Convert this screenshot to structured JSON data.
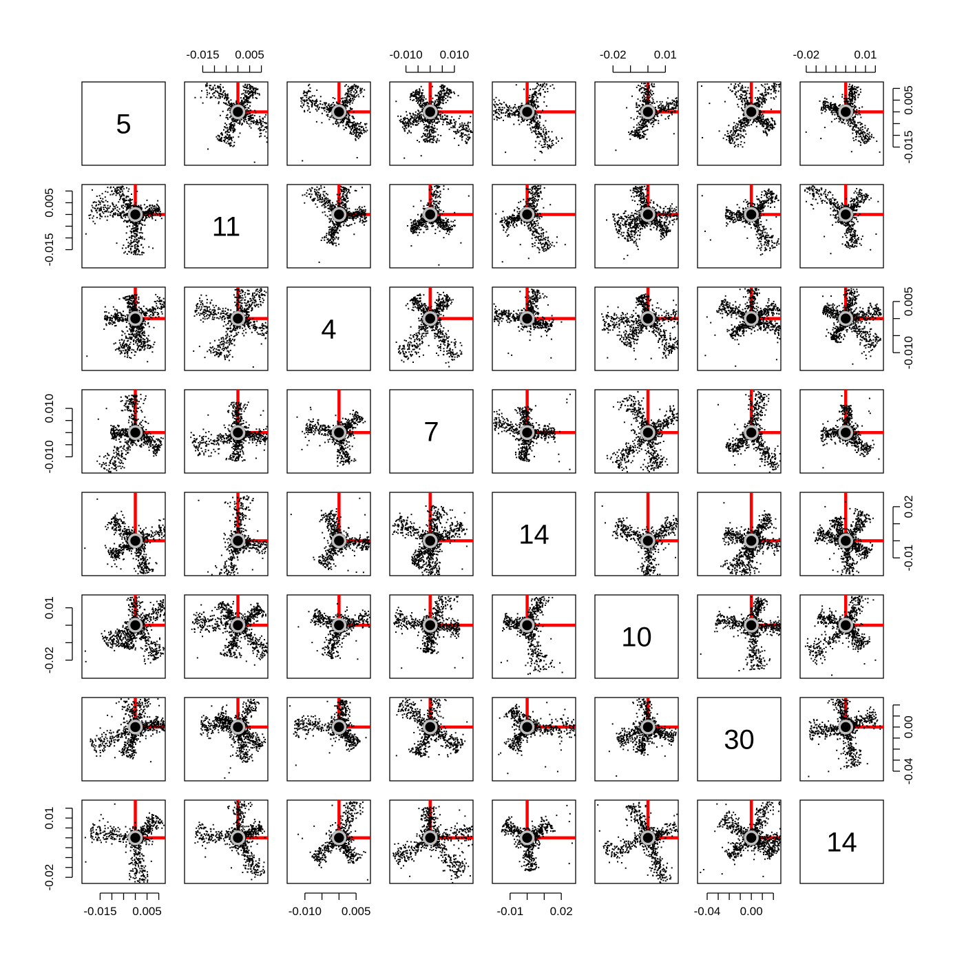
{
  "chart_data": {
    "type": "scatter",
    "matrix_type": "pairs",
    "title": "",
    "diagonal_labels": [
      "5",
      "11",
      "4",
      "7",
      "14",
      "10",
      "30",
      "14"
    ],
    "variables": [
      {
        "label": "5",
        "range": [
          -0.021,
          0.011
        ],
        "ticks": [
          -0.015,
          -0.01,
          -0.005,
          0,
          0.005,
          0.01
        ],
        "tick_labels": [
          "-0.015",
          "0.005"
        ],
        "label_positions": [
          -0.015,
          0.005
        ]
      },
      {
        "label": "11",
        "range": [
          -0.021,
          0.011
        ],
        "ticks": [
          -0.015,
          -0.01,
          -0.005,
          0,
          0.005,
          0.01
        ],
        "tick_labels": [
          "-0.015",
          "0.005"
        ],
        "label_positions": [
          -0.015,
          0.005
        ]
      },
      {
        "label": "4",
        "range": [
          -0.014,
          0.008
        ],
        "ticks": [
          -0.01,
          -0.005,
          0,
          0.005
        ],
        "tick_labels": [
          "-0.010",
          "0.005"
        ],
        "label_positions": [
          -0.01,
          0.005
        ]
      },
      {
        "label": "7",
        "range": [
          -0.015,
          0.016
        ],
        "ticks": [
          -0.01,
          -0.005,
          0,
          0.005,
          0.01
        ],
        "tick_labels": [
          "-0.010",
          "0.010"
        ],
        "label_positions": [
          -0.01,
          0.01
        ]
      },
      {
        "label": "14",
        "range": [
          -0.018,
          0.026
        ],
        "ticks": [
          -0.01,
          0,
          0.01,
          0.02
        ],
        "tick_labels": [
          "-0.01",
          "0.02"
        ],
        "label_positions": [
          -0.01,
          0.02
        ]
      },
      {
        "label": "10",
        "range": [
          -0.028,
          0.015
        ],
        "ticks": [
          -0.02,
          -0.01,
          0,
          0.01
        ],
        "tick_labels": [
          "-0.02",
          "0.01"
        ],
        "label_positions": [
          -0.02,
          0.01
        ]
      },
      {
        "label": "30",
        "range": [
          -0.045,
          0.023
        ],
        "ticks": [
          -0.04,
          -0.03,
          -0.02,
          -0.01,
          0,
          0.01,
          0.02
        ],
        "tick_labels": [
          "-0.04",
          "0.00"
        ],
        "label_positions": [
          -0.04,
          0
        ]
      },
      {
        "label": "14",
        "range": [
          -0.021,
          0.017
        ],
        "ticks": [
          -0.02,
          -0.015,
          -0.01,
          -0.005,
          0,
          0.005,
          0.01,
          0.015
        ],
        "tick_labels": [
          "-0.02",
          "0.01"
        ],
        "label_positions": [
          -0.02,
          0.01
        ]
      }
    ],
    "center_marker": {
      "x": 0,
      "y": 0,
      "style": "grey ring over black disc"
    },
    "reference_lines": {
      "color": "#ff0000",
      "from_origin": [
        "up",
        "right"
      ]
    },
    "point_color": "#000000",
    "grid": false,
    "legend": "none",
    "panels": "off-diagonal panels show point clouds radiating from the origin in star-shaped arms"
  }
}
